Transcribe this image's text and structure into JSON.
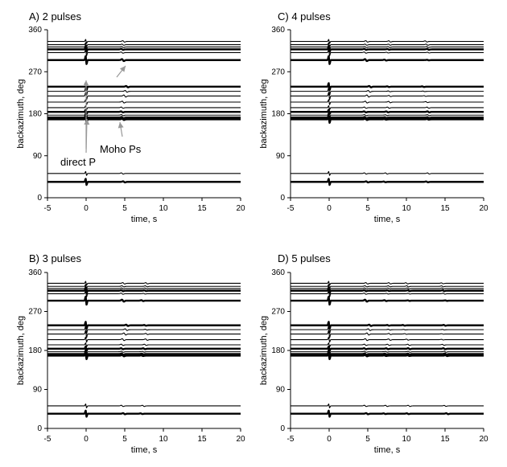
{
  "chart_data": [
    {
      "type": "line",
      "title": "A) 2 pulses",
      "xlabel": "time, s",
      "ylabel": "backazimuth, deg",
      "xlim": [
        -5,
        20
      ],
      "ylim": [
        0,
        360
      ],
      "xticks": [
        -5,
        0,
        5,
        10,
        15,
        20
      ],
      "yticks": [
        0,
        90,
        180,
        270,
        360
      ],
      "trace_backazimuths": [
        34,
        52,
        168,
        170,
        173,
        177,
        184,
        193,
        205,
        218,
        228,
        238,
        295,
        311,
        318,
        323,
        328,
        335
      ],
      "pulse_times_s": [
        0,
        5
      ],
      "annotations": [
        {
          "text": "Moho Ps"
        },
        {
          "text": "direct P"
        }
      ]
    },
    {
      "type": "line",
      "title": "B) 3 pulses",
      "xlabel": "time, s",
      "ylabel": "backazimuth, deg",
      "xlim": [
        -5,
        20
      ],
      "ylim": [
        0,
        360
      ],
      "xticks": [
        -5,
        0,
        5,
        10,
        15,
        20
      ],
      "yticks": [
        0,
        90,
        180,
        270,
        360
      ],
      "trace_backazimuths": [
        34,
        52,
        168,
        170,
        173,
        177,
        184,
        193,
        205,
        218,
        228,
        238,
        295,
        311,
        318,
        323,
        328,
        335
      ],
      "pulse_times_s": [
        0,
        5,
        7.5
      ],
      "annotations": []
    },
    {
      "type": "line",
      "title": "C) 4 pulses",
      "xlabel": "time, s",
      "ylabel": "backazimuth, deg",
      "xlim": [
        -5,
        20
      ],
      "ylim": [
        0,
        360
      ],
      "xticks": [
        -5,
        0,
        5,
        10,
        15,
        20
      ],
      "yticks": [
        0,
        90,
        180,
        270,
        360
      ],
      "trace_backazimuths": [
        34,
        52,
        168,
        170,
        173,
        177,
        184,
        193,
        205,
        218,
        228,
        238,
        295,
        311,
        318,
        323,
        328,
        335
      ],
      "pulse_times_s": [
        0,
        5,
        7.5,
        12.5
      ],
      "annotations": []
    },
    {
      "type": "line",
      "title": "D) 5 pulses",
      "xlabel": "time, s",
      "ylabel": "backazimuth, deg",
      "xlim": [
        -5,
        20
      ],
      "ylim": [
        0,
        360
      ],
      "xticks": [
        -5,
        0,
        5,
        10,
        15,
        20
      ],
      "yticks": [
        0,
        90,
        180,
        270,
        360
      ],
      "trace_backazimuths": [
        34,
        52,
        168,
        170,
        173,
        177,
        184,
        193,
        205,
        218,
        228,
        238,
        295,
        311,
        318,
        323,
        328,
        335
      ],
      "pulse_times_s": [
        0,
        5,
        7.5,
        10,
        15
      ],
      "annotations": []
    }
  ]
}
